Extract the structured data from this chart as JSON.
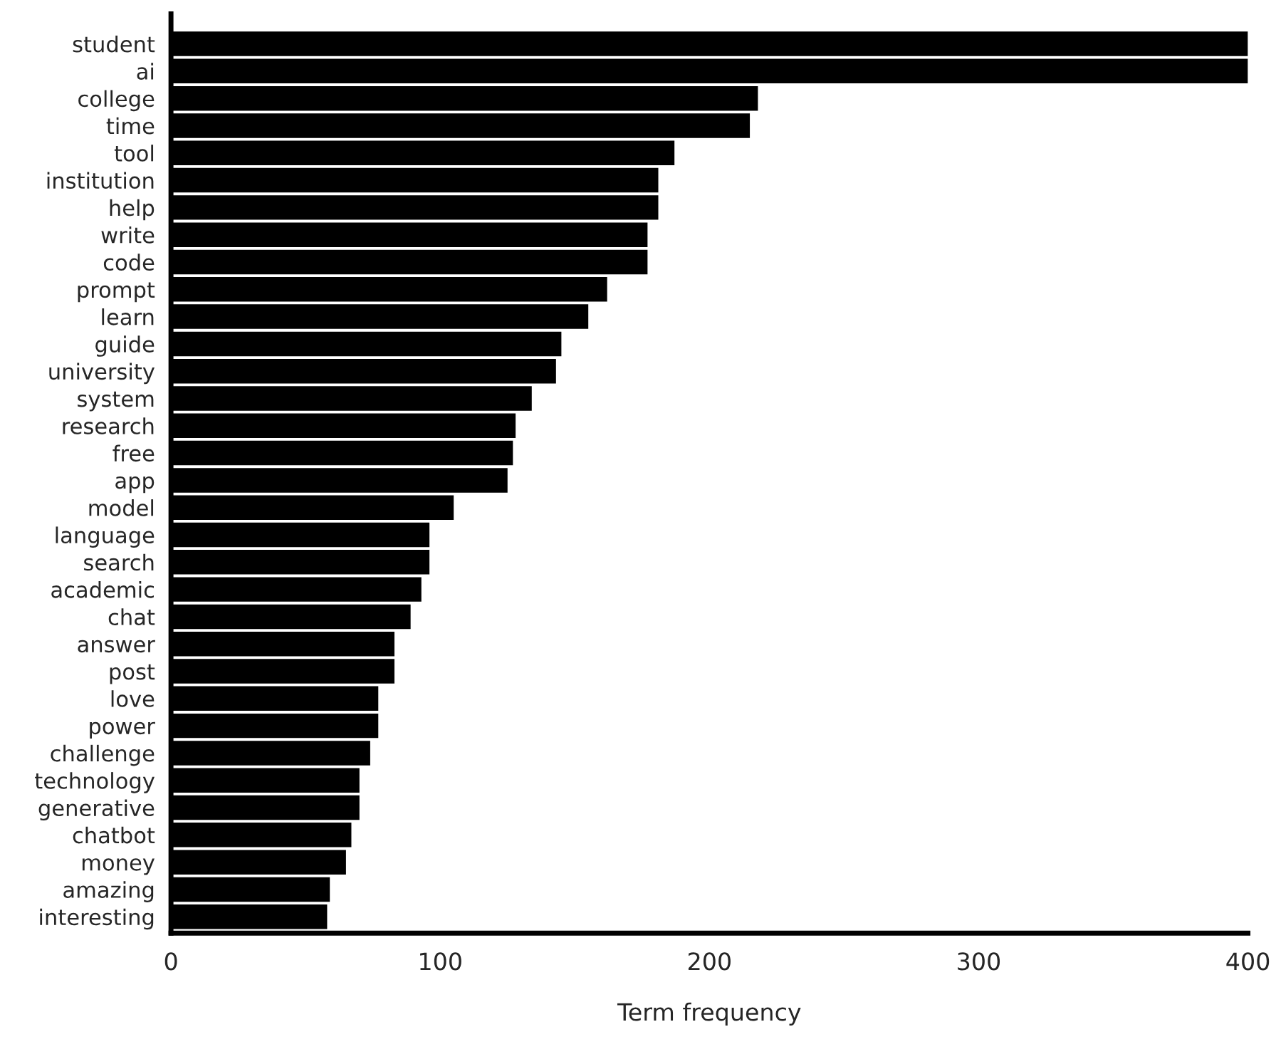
{
  "chart_data": {
    "type": "bar",
    "orientation": "horizontal",
    "xlabel": "Term frequency",
    "categories": [
      "student",
      "ai",
      "college",
      "time",
      "tool",
      "institution",
      "help",
      "write",
      "code",
      "prompt",
      "learn",
      "guide",
      "university",
      "system",
      "research",
      "free",
      "app",
      "model",
      "language",
      "search",
      "academic",
      "chat",
      "answer",
      "post",
      "love",
      "power",
      "challenge",
      "technology",
      "generative",
      "chatbot",
      "money",
      "amazing",
      "interesting"
    ],
    "values": [
      400,
      400,
      218,
      215,
      187,
      181,
      181,
      177,
      177,
      162,
      155,
      145,
      143,
      134,
      128,
      127,
      125,
      105,
      96,
      96,
      93,
      89,
      83,
      83,
      77,
      77,
      74,
      70,
      70,
      67,
      65,
      59,
      58
    ],
    "color": "#000000",
    "xlim": [
      0,
      400
    ],
    "xticks": [
      0,
      100,
      200,
      300,
      400
    ],
    "grid": false,
    "legend": false
  }
}
